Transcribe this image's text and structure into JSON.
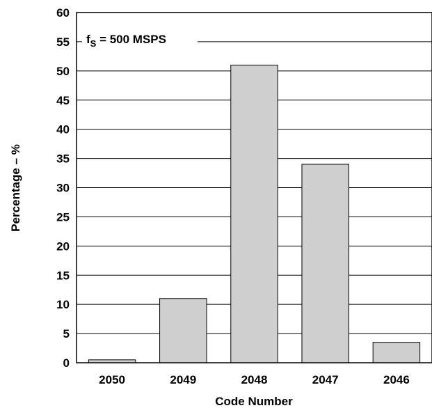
{
  "chart_data": {
    "type": "bar",
    "categories": [
      "2050",
      "2049",
      "2048",
      "2047",
      "2046"
    ],
    "values": [
      0.5,
      11,
      51,
      34,
      3.5
    ],
    "title": "",
    "xlabel": "Code Number",
    "ylabel": "Percentage – %",
    "ylim": [
      0,
      60
    ],
    "yticks": [
      0,
      5,
      10,
      15,
      20,
      25,
      30,
      35,
      40,
      45,
      50,
      55,
      60
    ],
    "grid": "horizontal",
    "bar_color": "#cfcfcf",
    "annotation": {
      "prefix": "f",
      "subscript": "S",
      "suffix": " = 500 MSPS"
    }
  }
}
